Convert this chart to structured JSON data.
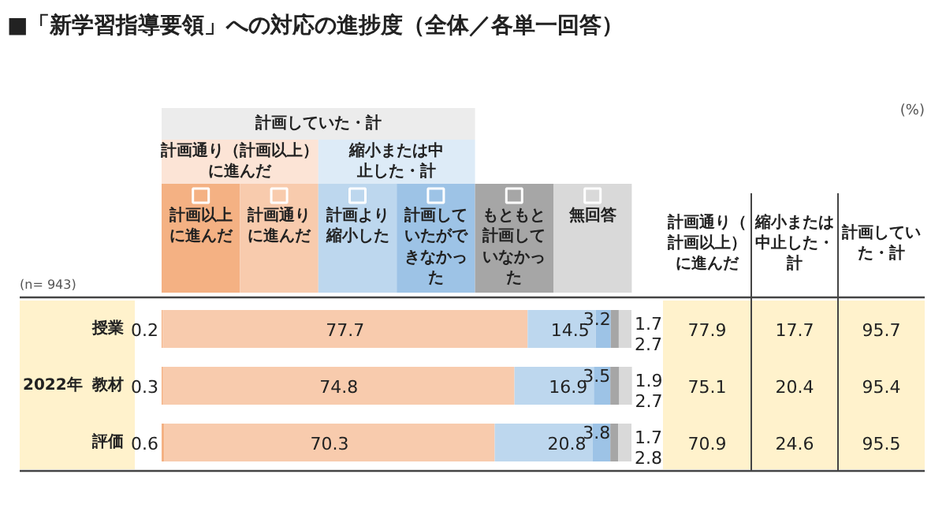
{
  "chart_data": {
    "type": "bar",
    "orientation": "horizontal",
    "stacked": true,
    "title": "■「新学習指導要領」への対応の進捗度（全体／各単一回答）",
    "categories": [
      "授業",
      "教材",
      "評価"
    ],
    "series": [
      {
        "name": "計画以上に進んだ",
        "color": "#f4b183",
        "values": [
          0.2,
          0.3,
          0.6
        ]
      },
      {
        "name": "計画通りに進んだ",
        "color": "#f8cbad",
        "values": [
          77.7,
          74.8,
          70.3
        ]
      },
      {
        "name": "計画より縮小した",
        "color": "#bdd7ee",
        "values": [
          14.5,
          16.9,
          20.8
        ]
      },
      {
        "name": "計画していたができなかった",
        "color": "#9dc3e6",
        "values": [
          3.2,
          3.5,
          3.8
        ]
      },
      {
        "name": "もともと計画していなかった",
        "color": "#a6a6a6",
        "values": [
          1.7,
          1.9,
          1.7
        ]
      },
      {
        "name": "無回答",
        "color": "#d9d9d9",
        "values": [
          2.7,
          2.7,
          2.8
        ]
      }
    ],
    "data_labels": true,
    "legend": "top",
    "annotations": [
      "(n= 943)",
      "(%)",
      "2022年",
      "計画していた・計",
      "計画通り（計画以上）に進んだ",
      "縮小または中止した・計",
      "計画通り（計画以上）に進んだ",
      "縮小または中止した・計",
      "計画していた・計",
      "77.9",
      "17.7",
      "95.7",
      "75.1",
      "20.4",
      "95.4",
      "70.9",
      "24.6",
      "95.5"
    ]
  }
}
